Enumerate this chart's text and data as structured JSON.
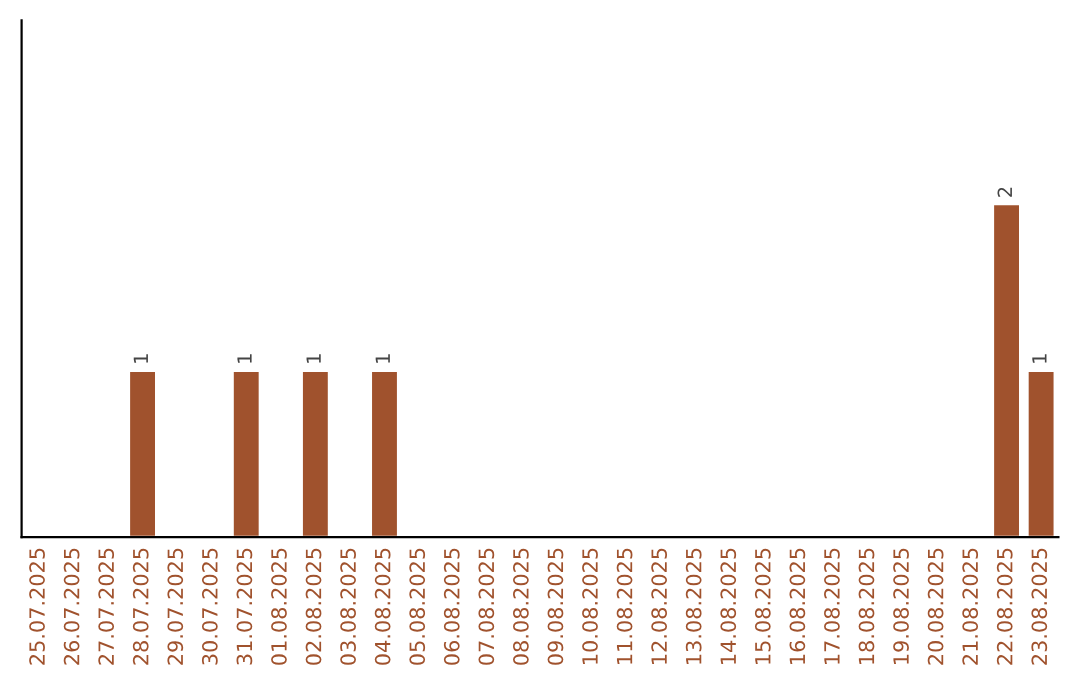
{
  "chart_data": {
    "type": "bar",
    "categories": [
      "25.07.2025",
      "26.07.2025",
      "27.07.2025",
      "28.07.2025",
      "29.07.2025",
      "30.07.2025",
      "31.07.2025",
      "01.08.2025",
      "02.08.2025",
      "03.08.2025",
      "04.08.2025",
      "05.08.2025",
      "06.08.2025",
      "07.08.2025",
      "08.08.2025",
      "09.08.2025",
      "10.08.2025",
      "11.08.2025",
      "12.08.2025",
      "13.08.2025",
      "14.08.2025",
      "15.08.2025",
      "16.08.2025",
      "17.08.2025",
      "18.08.2025",
      "19.08.2025",
      "20.08.2025",
      "21.08.2025",
      "22.08.2025",
      "23.08.2025"
    ],
    "values": [
      null,
      null,
      null,
      1,
      null,
      null,
      1,
      null,
      1,
      null,
      1,
      null,
      null,
      null,
      null,
      null,
      null,
      null,
      null,
      null,
      null,
      null,
      null,
      null,
      null,
      null,
      null,
      null,
      2,
      1
    ],
    "value_labels": [
      null,
      null,
      null,
      "1",
      null,
      null,
      "1",
      null,
      "1",
      null,
      "1",
      null,
      null,
      null,
      null,
      null,
      null,
      null,
      null,
      null,
      null,
      null,
      null,
      null,
      null,
      null,
      null,
      null,
      "2",
      "1"
    ],
    "color": "#a0522d",
    "ylim": [
      0,
      3.1
    ],
    "tick_labels": "x",
    "grid": false,
    "legend": false
  }
}
